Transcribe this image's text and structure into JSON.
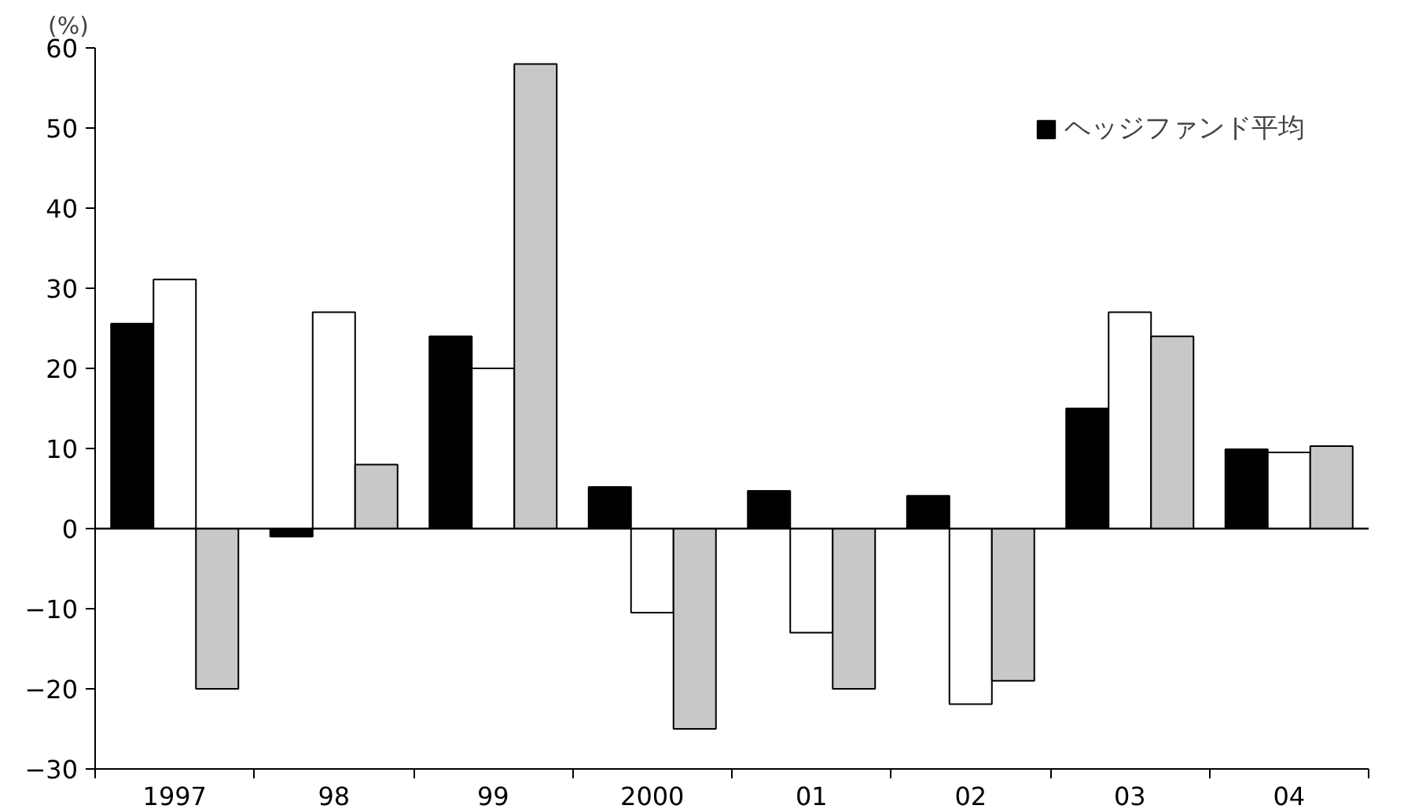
{
  "chart_data": {
    "type": "bar",
    "ylabel": "(%)",
    "categories": [
      "1997",
      "98",
      "99",
      "2000",
      "01",
      "02",
      "03",
      "04"
    ],
    "series": [
      {
        "name": "ヘッジファンド平均",
        "color": "#000000",
        "values": [
          25.6,
          -1,
          24,
          5.2,
          4.7,
          4.1,
          15,
          9.9
        ]
      },
      {
        "color": "#ffffff",
        "values": [
          31.1,
          27,
          20,
          -10.5,
          -13,
          -21.9,
          27,
          9.5
        ]
      },
      {
        "color": "#c8c8c8",
        "values": [
          -20,
          8,
          58,
          -25,
          -20,
          -19,
          24,
          10.3
        ]
      }
    ],
    "ylim": [
      -30,
      60
    ],
    "yticks": [
      {
        "value": -30,
        "label": "−30"
      },
      {
        "value": -20,
        "label": "−20"
      },
      {
        "value": -10,
        "label": "−10"
      },
      0,
      10,
      20,
      30,
      40,
      50,
      60
    ],
    "ref_lines": [
      {
        "axis": "y",
        "value": 0
      }
    ],
    "grid": false,
    "legend": "top right"
  }
}
